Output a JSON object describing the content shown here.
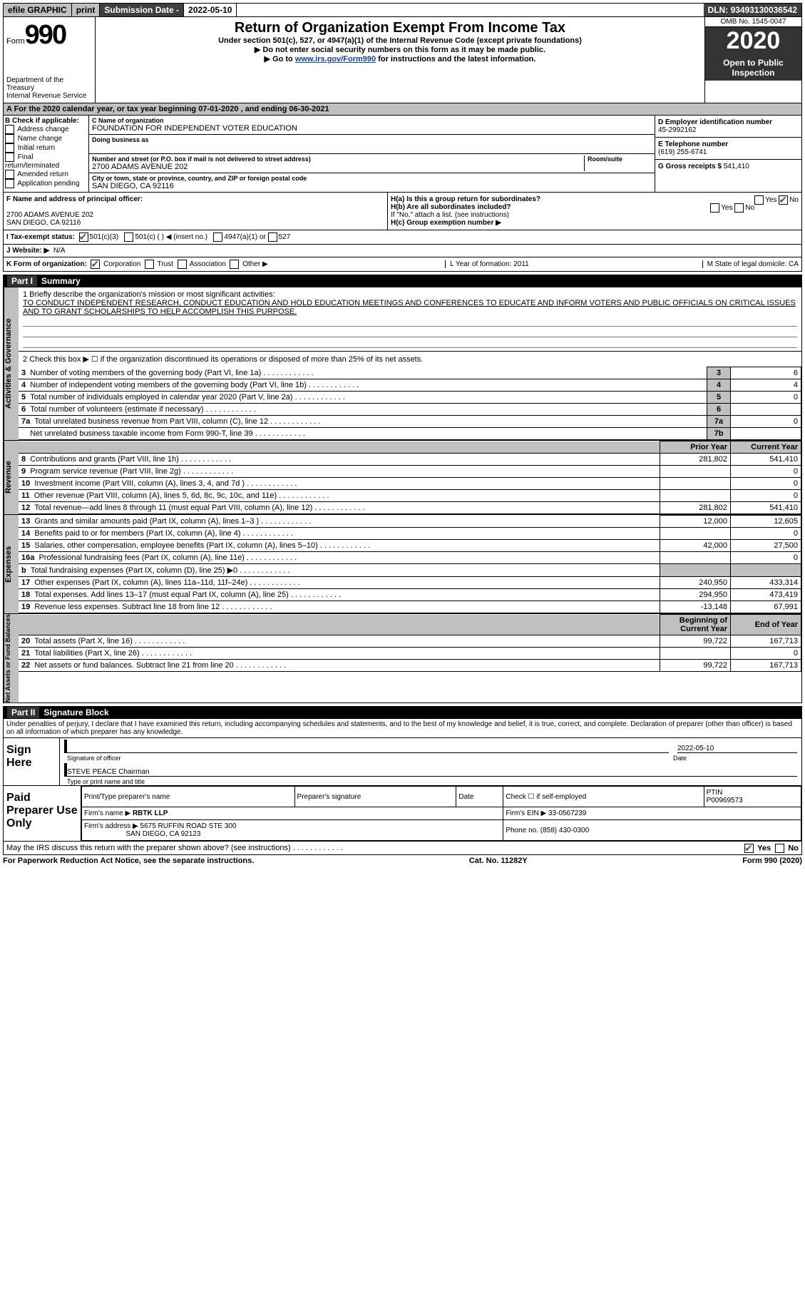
{
  "topbar": {
    "efile": "efile GRAPHIC",
    "print": "print",
    "sub_label": "Submission Date -",
    "sub_date": "2022-05-10",
    "dln_label": "DLN:",
    "dln": "93493130036542"
  },
  "header": {
    "form_word": "Form",
    "form_num": "990",
    "dept": "Department of the Treasury\nInternal Revenue Service",
    "title": "Return of Organization Exempt From Income Tax",
    "sub1": "Under section 501(c), 527, or 4947(a)(1) of the Internal Revenue Code (except private foundations)",
    "sub2": "▶ Do not enter social security numbers on this form as it may be made public.",
    "sub3_pre": "▶ Go to ",
    "sub3_link": "www.irs.gov/Form990",
    "sub3_post": " for instructions and the latest information.",
    "omb": "OMB No. 1545-0047",
    "year": "2020",
    "otp": "Open to Public Inspection"
  },
  "period": "A For the 2020 calendar year, or tax year beginning 07-01-2020  , and ending 06-30-2021",
  "boxB": {
    "label": "B Check if applicable:",
    "items": [
      "Address change",
      "Name change",
      "Initial return",
      "Final return/terminated",
      "Amended return",
      "Application pending"
    ]
  },
  "boxC": {
    "name_label": "C Name of organization",
    "name": "FOUNDATION FOR INDEPENDENT VOTER EDUCATION",
    "dba_label": "Doing business as",
    "addr_label": "Number and street (or P.O. box if mail is not delivered to street address)",
    "room_label": "Room/suite",
    "addr": "2700 ADAMS AVENUE 202",
    "city_label": "City or town, state or province, country, and ZIP or foreign postal code",
    "city": "SAN DIEGO, CA  92116"
  },
  "boxD": {
    "ein_label": "D Employer identification number",
    "ein": "45-2992162",
    "tel_label": "E Telephone number",
    "tel": "(619) 255-6741",
    "gross_label": "G Gross receipts $",
    "gross": "541,410"
  },
  "boxF": {
    "label": "F  Name and address of principal officer:",
    "addr1": "2700 ADAMS AVENUE 202",
    "addr2": "SAN DIEGO, CA  92116"
  },
  "boxH": {
    "ha": "H(a)  Is this a group return for subordinates?",
    "hb": "H(b)  Are all subordinates included?",
    "hb_note": "If \"No,\" attach a list. (see instructions)",
    "hc": "H(c)  Group exemption number ▶",
    "yes": "Yes",
    "no": "No"
  },
  "rowI": {
    "label": "I   Tax-exempt status:",
    "o1": "501(c)(3)",
    "o2": "501(c) (  ) ◀ (insert no.)",
    "o3": "4947(a)(1) or",
    "o4": "527"
  },
  "rowJ": {
    "label": "J   Website: ▶",
    "val": "N/A"
  },
  "rowK": {
    "label": "K Form of organization:",
    "opts": [
      "Corporation",
      "Trust",
      "Association",
      "Other ▶"
    ],
    "L": "L Year of formation: 2011",
    "M": "M State of legal domicile: CA"
  },
  "part1": {
    "title": "Part I     Summary",
    "q1": "1   Briefly describe the organization's mission or most significant activities:",
    "mission": "TO CONDUCT INDEPENDENT RESEARCH, CONDUCT EDUCATION AND HOLD EDUCATION MEETINGS AND CONFERENCES TO EDUCATE AND INFORM VOTERS AND PUBLIC OFFICIALS ON CRITICAL ISSUES AND TO GRANT SCHOLARSHIPS TO HELP ACCOMPLISH THIS PURPOSE.",
    "q2": "2   Check this box ▶ ☐  if the organization discontinued its operations or disposed of more than 25% of its net assets.",
    "rows_a": [
      {
        "n": "3",
        "d": "Number of voting members of the governing body (Part VI, line 1a)",
        "ln": "3",
        "v": "6"
      },
      {
        "n": "4",
        "d": "Number of independent voting members of the governing body (Part VI, line 1b)",
        "ln": "4",
        "v": "4"
      },
      {
        "n": "5",
        "d": "Total number of individuals employed in calendar year 2020 (Part V, line 2a)",
        "ln": "5",
        "v": "0"
      },
      {
        "n": "6",
        "d": "Total number of volunteers (estimate if necessary)",
        "ln": "6",
        "v": ""
      },
      {
        "n": "7a",
        "d": "Total unrelated business revenue from Part VIII, column (C), line 12",
        "ln": "7a",
        "v": "0"
      },
      {
        "n": "",
        "d": "Net unrelated business taxable income from Form 990-T, line 39",
        "ln": "7b",
        "v": ""
      }
    ],
    "hdr_prior": "Prior Year",
    "hdr_curr": "Current Year",
    "rows_rev": [
      {
        "n": "8",
        "d": "Contributions and grants (Part VIII, line 1h)",
        "p": "281,802",
        "c": "541,410"
      },
      {
        "n": "9",
        "d": "Program service revenue (Part VIII, line 2g)",
        "p": "",
        "c": "0"
      },
      {
        "n": "10",
        "d": "Investment income (Part VIII, column (A), lines 3, 4, and 7d )",
        "p": "",
        "c": "0"
      },
      {
        "n": "11",
        "d": "Other revenue (Part VIII, column (A), lines 5, 6d, 8c, 9c, 10c, and 11e)",
        "p": "",
        "c": "0"
      },
      {
        "n": "12",
        "d": "Total revenue—add lines 8 through 11 (must equal Part VIII, column (A), line 12)",
        "p": "281,802",
        "c": "541,410"
      }
    ],
    "rows_exp": [
      {
        "n": "13",
        "d": "Grants and similar amounts paid (Part IX, column (A), lines 1–3 )",
        "p": "12,000",
        "c": "12,605"
      },
      {
        "n": "14",
        "d": "Benefits paid to or for members (Part IX, column (A), line 4)",
        "p": "",
        "c": "0"
      },
      {
        "n": "15",
        "d": "Salaries, other compensation, employee benefits (Part IX, column (A), lines 5–10)",
        "p": "42,000",
        "c": "27,500"
      },
      {
        "n": "16a",
        "d": "Professional fundraising fees (Part IX, column (A), line 11e)",
        "p": "",
        "c": "0"
      },
      {
        "n": "b",
        "d": "Total fundraising expenses (Part IX, column (D), line 25) ▶0",
        "p": "GREY",
        "c": "GREY"
      },
      {
        "n": "17",
        "d": "Other expenses (Part IX, column (A), lines 11a–11d, 11f–24e)",
        "p": "240,950",
        "c": "433,314"
      },
      {
        "n": "18",
        "d": "Total expenses. Add lines 13–17 (must equal Part IX, column (A), line 25)",
        "p": "294,950",
        "c": "473,419"
      },
      {
        "n": "19",
        "d": "Revenue less expenses. Subtract line 18 from line 12",
        "p": "-13,148",
        "c": "67,991"
      }
    ],
    "hdr_beg": "Beginning of Current Year",
    "hdr_end": "End of Year",
    "rows_bal": [
      {
        "n": "20",
        "d": "Total assets (Part X, line 16)",
        "p": "99,722",
        "c": "167,713"
      },
      {
        "n": "21",
        "d": "Total liabilities (Part X, line 26)",
        "p": "",
        "c": "0"
      },
      {
        "n": "22",
        "d": "Net assets or fund balances. Subtract line 21 from line 20",
        "p": "99,722",
        "c": "167,713"
      }
    ],
    "tabs": {
      "a": "Activities & Governance",
      "r": "Revenue",
      "e": "Expenses",
      "b": "Net Assets or Fund Balances"
    }
  },
  "part2": {
    "title": "Part II    Signature Block",
    "perjury": "Under penalties of perjury, I declare that I have examined this return, including accompanying schedules and statements, and to the best of my knowledge and belief, it is true, correct, and complete. Declaration of preparer (other than officer) is based on all information of which preparer has any knowledge.",
    "sign_here": "Sign Here",
    "sig_officer": "Signature of officer",
    "sig_date": "2022-05-10",
    "date_lbl": "Date",
    "name": "STEVE PEACE Chairman",
    "name_lbl": "Type or print name and title",
    "paid": "Paid Preparer Use Only",
    "h1": "Print/Type preparer's name",
    "h2": "Preparer's signature",
    "h3": "Date",
    "check_se": "Check ☐ if self-employed",
    "ptin_lbl": "PTIN",
    "ptin": "P00969573",
    "firm_name_lbl": "Firm's name   ▶",
    "firm_name": "RBTK LLP",
    "firm_ein_lbl": "Firm's EIN ▶",
    "firm_ein": "33-0567239",
    "firm_addr_lbl": "Firm's address ▶",
    "firm_addr1": "5675 RUFFIN ROAD STE 300",
    "firm_addr2": "SAN DIEGO, CA  92123",
    "phone_lbl": "Phone no.",
    "phone": "(858) 430-0300",
    "discuss": "May the IRS discuss this return with the preparer shown above? (see instructions)"
  },
  "footer": {
    "left": "For Paperwork Reduction Act Notice, see the separate instructions.",
    "mid": "Cat. No. 11282Y",
    "right": "Form 990 (2020)"
  }
}
